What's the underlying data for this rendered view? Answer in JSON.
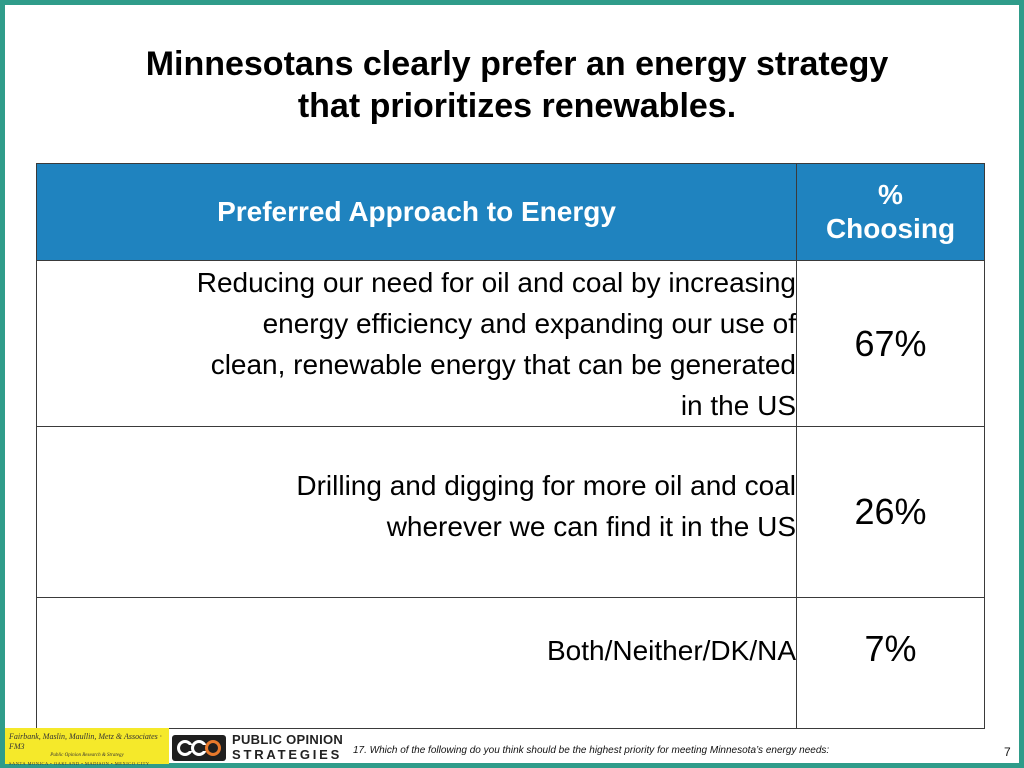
{
  "slide": {
    "title_line1": "Minnesotans clearly prefer an energy strategy",
    "title_line2": "that prioritizes renewables.",
    "page_number": "7"
  },
  "table": {
    "headers": {
      "approach": "Preferred Approach to Energy",
      "pct_line1": "%",
      "pct_line2": "Choosing"
    },
    "rows": [
      {
        "approach_lines": [
          "Reducing our need for oil and coal by increasing",
          "energy efficiency and expanding our use of",
          "clean, renewable energy that can be generated",
          "in the US"
        ],
        "pct": "67%"
      },
      {
        "approach_lines": [
          "Drilling and digging for more oil and coal",
          "wherever we can find it in the US"
        ],
        "pct": "26%"
      },
      {
        "approach_lines": [
          "Both/Neither/DK/NA"
        ],
        "pct": "7%"
      }
    ]
  },
  "footer": {
    "fmm_logo_line1": "Fairbank, Maslin, Maullin, Metz & Associates · FM3",
    "fmm_logo_line2": "Public Opinion Research & Strategy",
    "fmm_logo_line3": "SANTA MONICA • OAKLAND • MADISON • MEXICO CITY",
    "pos_logo_line1": "PUBLIC OPINION",
    "pos_logo_line2": "STRATEGIES",
    "pos_mark_icon": "pos-logo-mark-icon",
    "footnote": "17. Which of the following do you think should be the highest priority for meeting Minnesota’s energy needs:"
  },
  "colors": {
    "frame": "#2f9c8a",
    "header_fill": "#1f83bf",
    "fmm_logo_fill": "#f5e92a"
  }
}
